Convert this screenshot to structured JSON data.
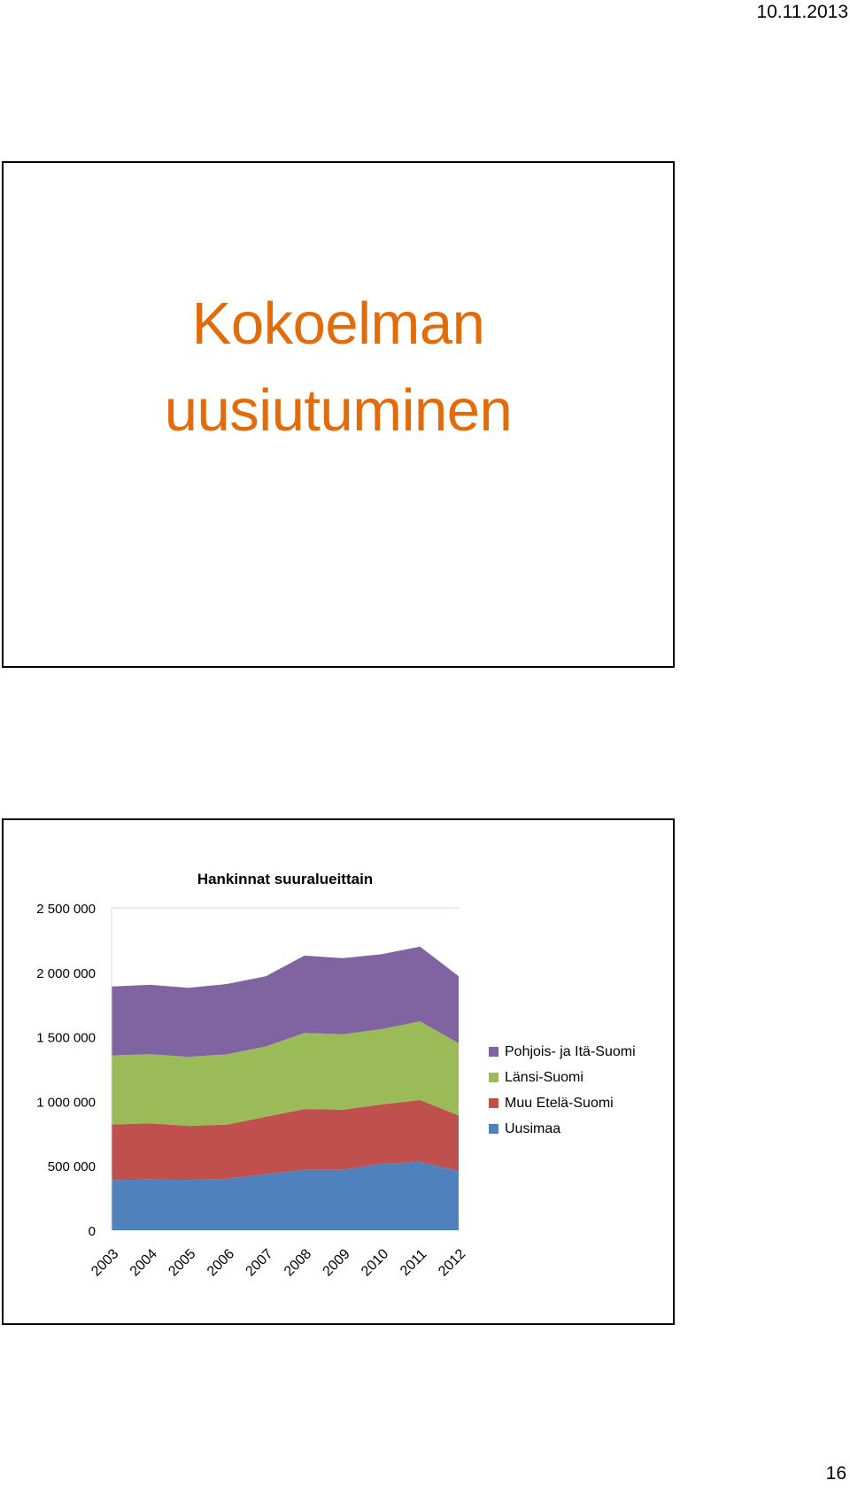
{
  "page": {
    "date": "10.11.2013",
    "number": "16"
  },
  "title_slide": {
    "title_line1": "Kokoelman",
    "title_line2": "uusiutuminen"
  },
  "chart_data": {
    "type": "area",
    "stacked": true,
    "title": "Hankinnat suuralueittain",
    "xlabel": "",
    "ylabel": "",
    "categories": [
      "2003",
      "2004",
      "2005",
      "2006",
      "2007",
      "2008",
      "2009",
      "2010",
      "2011",
      "2012"
    ],
    "ylim": [
      0,
      2500000
    ],
    "yticks": [
      0,
      500000,
      1000000,
      1500000,
      2000000,
      2500000
    ],
    "ytick_labels": [
      "0",
      "500 000",
      "1 000 000",
      "1 500 000",
      "2 000 000",
      "2 500 000"
    ],
    "grid": false,
    "legend_position": "right",
    "series": [
      {
        "name": "Uusimaa",
        "color": "#4f81bd",
        "values": [
          390000,
          393000,
          391000,
          400000,
          435000,
          470000,
          470000,
          515000,
          530000,
          460000
        ]
      },
      {
        "name": "Muu Etelä-Suomi",
        "color": "#c0504d",
        "values": [
          430000,
          437000,
          418000,
          420000,
          445000,
          470000,
          465000,
          460000,
          480000,
          430000
        ]
      },
      {
        "name": "Länsi-Suomi",
        "color": "#9bbb59",
        "values": [
          535000,
          535000,
          535000,
          545000,
          545000,
          590000,
          585000,
          585000,
          610000,
          560000
        ]
      },
      {
        "name": "Pohjois- ja Itä-Suomi",
        "color": "#8064a2",
        "values": [
          535000,
          538000,
          536000,
          545000,
          545000,
          600000,
          590000,
          580000,
          580000,
          520000
        ]
      }
    ],
    "legend_order": [
      "Pohjois- ja Itä-Suomi",
      "Länsi-Suomi",
      "Muu Etelä-Suomi",
      "Uusimaa"
    ]
  }
}
